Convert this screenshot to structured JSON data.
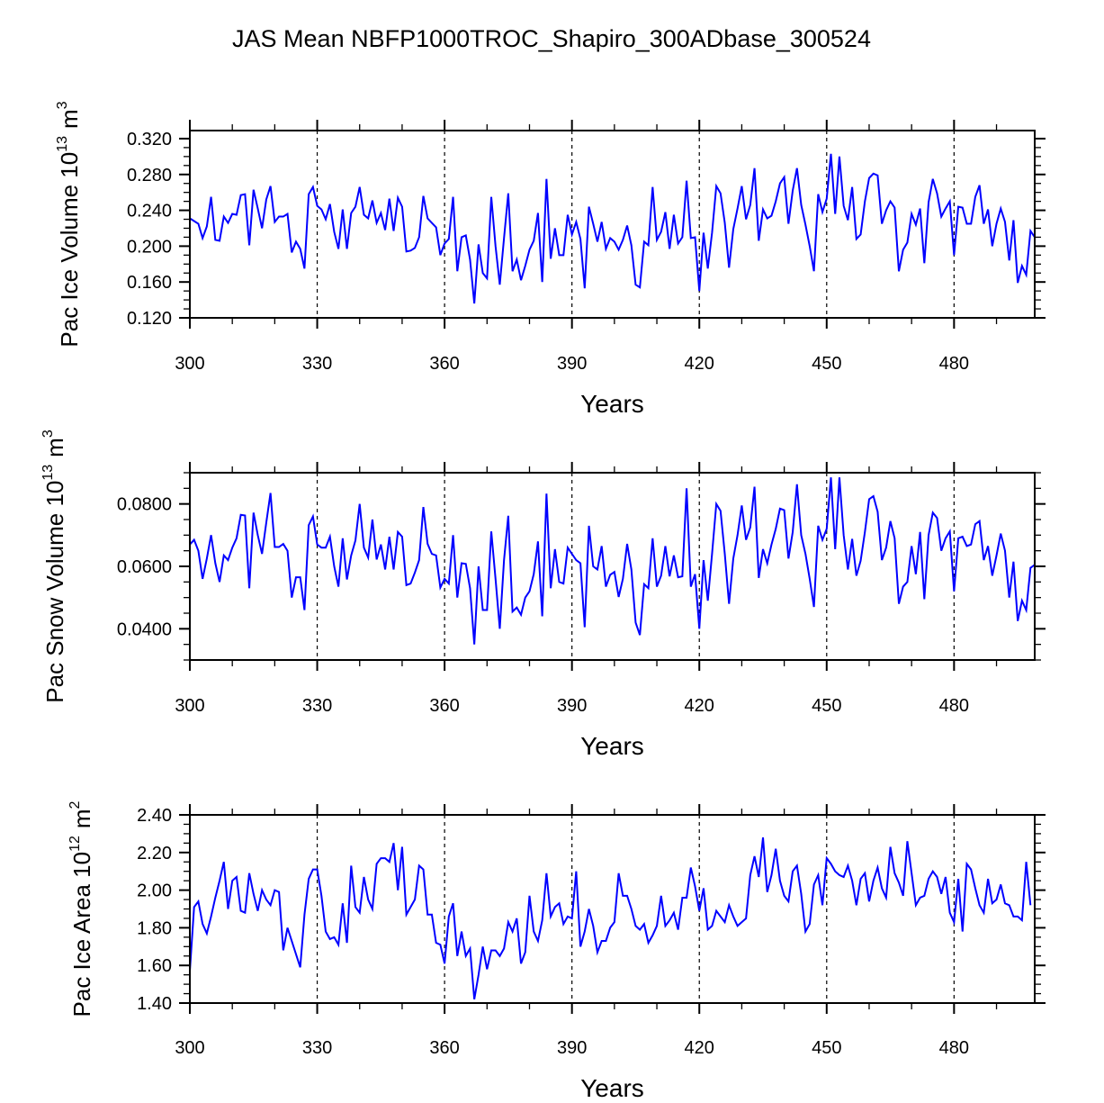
{
  "chart_data": [
    {
      "type": "line",
      "title": "JAS Mean NBFP1000TROC_Shapiro_300ADbase_300524",
      "xlabel": "Years",
      "ylabel": "Pac Ice Volume 10^13 m^3",
      "ylabel_base": "Pac Ice Volume 10",
      "ylabel_exp": "13",
      "ylabel_unit": "m",
      "ylabel_unit_exp": "3",
      "xlim": [
        300,
        499
      ],
      "ylim": [
        0.12,
        0.329
      ],
      "xticks": [
        300,
        330,
        360,
        390,
        420,
        450,
        480
      ],
      "xtick_labels": [
        "300",
        "330",
        "360",
        "390",
        "420",
        "450",
        "480"
      ],
      "yticks": [
        0.12,
        0.16,
        0.2,
        0.24,
        0.28,
        0.32
      ],
      "ytick_labels": [
        "0.120",
        "0.160",
        "0.200",
        "0.240",
        "0.280",
        "0.320"
      ],
      "reference_lines_x": [
        330,
        360,
        390,
        420,
        450,
        480
      ],
      "grid": false,
      "color": "#0000ff",
      "x_start": 300,
      "series": [
        {
          "name": "Pac Ice Volume",
          "values": [
            0.231,
            0.228,
            0.225,
            0.209,
            0.222,
            0.255,
            0.207,
            0.206,
            0.233,
            0.226,
            0.236,
            0.235,
            0.257,
            0.258,
            0.201,
            0.263,
            0.242,
            0.22,
            0.252,
            0.267,
            0.227,
            0.233,
            0.233,
            0.236,
            0.193,
            0.205,
            0.197,
            0.175,
            0.258,
            0.266,
            0.245,
            0.241,
            0.23,
            0.247,
            0.216,
            0.197,
            0.241,
            0.197,
            0.237,
            0.244,
            0.266,
            0.235,
            0.231,
            0.251,
            0.226,
            0.237,
            0.218,
            0.253,
            0.217,
            0.254,
            0.244,
            0.194,
            0.195,
            0.198,
            0.21,
            0.256,
            0.231,
            0.226,
            0.221,
            0.19,
            0.203,
            0.208,
            0.255,
            0.172,
            0.21,
            0.212,
            0.185,
            0.136,
            0.202,
            0.17,
            0.164,
            0.255,
            0.2,
            0.157,
            0.209,
            0.259,
            0.172,
            0.185,
            0.162,
            0.178,
            0.196,
            0.206,
            0.237,
            0.16,
            0.275,
            0.186,
            0.22,
            0.19,
            0.19,
            0.235,
            0.213,
            0.227,
            0.208,
            0.153,
            0.244,
            0.225,
            0.205,
            0.227,
            0.197,
            0.209,
            0.205,
            0.196,
            0.207,
            0.223,
            0.201,
            0.157,
            0.154,
            0.205,
            0.201,
            0.266,
            0.207,
            0.216,
            0.238,
            0.197,
            0.235,
            0.203,
            0.21,
            0.273,
            0.209,
            0.21,
            0.15,
            0.215,
            0.175,
            0.215,
            0.267,
            0.259,
            0.226,
            0.176,
            0.219,
            0.242,
            0.267,
            0.23,
            0.246,
            0.287,
            0.206,
            0.241,
            0.231,
            0.234,
            0.25,
            0.27,
            0.277,
            0.225,
            0.262,
            0.287,
            0.246,
            0.224,
            0.2,
            0.172,
            0.258,
            0.238,
            0.253,
            0.303,
            0.236,
            0.3,
            0.245,
            0.229,
            0.266,
            0.208,
            0.213,
            0.25,
            0.276,
            0.281,
            0.279,
            0.225,
            0.24,
            0.25,
            0.243,
            0.172,
            0.196,
            0.204,
            0.236,
            0.224,
            0.242,
            0.181,
            0.249,
            0.275,
            0.259,
            0.233,
            0.242,
            0.25,
            0.19,
            0.244,
            0.243,
            0.225,
            0.225,
            0.255,
            0.268,
            0.225,
            0.241,
            0.2,
            0.225,
            0.242,
            0.227,
            0.184,
            0.229,
            0.159,
            0.178,
            0.168,
            0.217,
            0.21
          ]
        }
      ]
    },
    {
      "type": "line",
      "xlabel": "Years",
      "ylabel": "Pac Snow Volume 10^13 m^3",
      "ylabel_base": "Pac Snow Volume 10",
      "ylabel_exp": "13",
      "ylabel_unit": "m",
      "ylabel_unit_exp": "3",
      "xlim": [
        300,
        499
      ],
      "ylim": [
        0.03,
        0.09
      ],
      "xticks": [
        300,
        330,
        360,
        390,
        420,
        450,
        480
      ],
      "xtick_labels": [
        "300",
        "330",
        "360",
        "390",
        "420",
        "450",
        "480"
      ],
      "yticks": [
        0.04,
        0.06,
        0.08
      ],
      "ytick_labels": [
        "0.0400",
        "0.0600",
        "0.0800"
      ],
      "reference_lines_x": [
        330,
        360,
        390,
        420,
        450,
        480
      ],
      "grid": false,
      "color": "#0000ff",
      "x_start": 300,
      "series": [
        {
          "name": "Pac Snow Volume",
          "values": [
            0.067,
            0.0685,
            0.065,
            0.056,
            0.0625,
            0.07,
            0.061,
            0.055,
            0.0635,
            0.062,
            0.066,
            0.069,
            0.0765,
            0.0763,
            0.053,
            0.0772,
            0.07,
            0.064,
            0.074,
            0.0835,
            0.0662,
            0.0662,
            0.0672,
            0.065,
            0.05,
            0.0565,
            0.0565,
            0.046,
            0.0732,
            0.076,
            0.067,
            0.066,
            0.066,
            0.0695,
            0.06,
            0.0535,
            0.069,
            0.0558,
            0.0635,
            0.0683,
            0.08,
            0.066,
            0.0628,
            0.075,
            0.0622,
            0.067,
            0.059,
            0.0695,
            0.059,
            0.071,
            0.0695,
            0.054,
            0.0545,
            0.058,
            0.062,
            0.079,
            0.0672,
            0.064,
            0.0635,
            0.0532,
            0.056,
            0.0545,
            0.07,
            0.05,
            0.061,
            0.0608,
            0.053,
            0.035,
            0.06,
            0.046,
            0.046,
            0.0712,
            0.056,
            0.04,
            0.062,
            0.0762,
            0.0455,
            0.0468,
            0.0445,
            0.05,
            0.052,
            0.0575,
            0.068,
            0.044,
            0.0833,
            0.053,
            0.0655,
            0.055,
            0.0545,
            0.066,
            0.064,
            0.062,
            0.061,
            0.0405,
            0.073,
            0.06,
            0.059,
            0.0665,
            0.0535,
            0.0573,
            0.0582,
            0.0502,
            0.056,
            0.0672,
            0.059,
            0.042,
            0.038,
            0.0543,
            0.053,
            0.069,
            0.0535,
            0.057,
            0.0665,
            0.0568,
            0.0635,
            0.0565,
            0.0568,
            0.085,
            0.0535,
            0.0575,
            0.04,
            0.062,
            0.049,
            0.064,
            0.08,
            0.0778,
            0.064,
            0.048,
            0.0625,
            0.07,
            0.0795,
            0.0685,
            0.0725,
            0.0855,
            0.0563,
            0.0655,
            0.061,
            0.067,
            0.072,
            0.0785,
            0.078,
            0.0625,
            0.071,
            0.0863,
            0.07,
            0.064,
            0.056,
            0.047,
            0.073,
            0.0685,
            0.072,
            0.0885,
            0.0655,
            0.0885,
            0.07,
            0.059,
            0.0688,
            0.057,
            0.0618,
            0.071,
            0.0815,
            0.0825,
            0.0775,
            0.062,
            0.066,
            0.0745,
            0.069,
            0.048,
            0.0535,
            0.055,
            0.0665,
            0.0575,
            0.071,
            0.0495,
            0.07,
            0.0772,
            0.0755,
            0.065,
            0.069,
            0.0712,
            0.052,
            0.069,
            0.0695,
            0.0665,
            0.067,
            0.0735,
            0.0745,
            0.062,
            0.0665,
            0.057,
            0.0635,
            0.0705,
            0.065,
            0.05,
            0.0615,
            0.0425,
            0.049,
            0.046,
            0.0595,
            0.0605
          ]
        }
      ]
    },
    {
      "type": "line",
      "xlabel": "Years",
      "ylabel": "Pac Ice Area 10^12 m^2",
      "ylabel_base": "Pac Ice Area 10",
      "ylabel_exp": "12",
      "ylabel_unit": "m",
      "ylabel_unit_exp": "2",
      "xlim": [
        300,
        499
      ],
      "ylim": [
        1.4,
        2.4
      ],
      "xticks": [
        300,
        330,
        360,
        390,
        420,
        450,
        480
      ],
      "xtick_labels": [
        "300",
        "330",
        "360",
        "390",
        "420",
        "450",
        "480"
      ],
      "yticks": [
        1.4,
        1.6,
        1.8,
        2.0,
        2.2,
        2.4
      ],
      "ytick_labels": [
        "1.40",
        "1.60",
        "1.80",
        "2.00",
        "2.20",
        "2.40"
      ],
      "reference_lines_x": [
        330,
        360,
        390,
        420,
        450,
        480
      ],
      "grid": false,
      "color": "#0000ff",
      "x_start": 300,
      "series": [
        {
          "name": "Pac Ice Area",
          "values": [
            1.57,
            1.91,
            1.94,
            1.82,
            1.77,
            1.86,
            1.96,
            2.05,
            2.15,
            1.9,
            2.05,
            2.07,
            1.89,
            1.88,
            2.09,
            1.98,
            1.89,
            2.0,
            1.95,
            1.92,
            2.0,
            1.99,
            1.68,
            1.8,
            1.73,
            1.66,
            1.59,
            1.87,
            2.06,
            2.11,
            2.11,
            1.97,
            1.78,
            1.74,
            1.75,
            1.71,
            1.93,
            1.72,
            2.13,
            1.91,
            1.88,
            2.07,
            1.95,
            1.9,
            2.14,
            2.17,
            2.17,
            2.15,
            2.25,
            2.0,
            2.23,
            1.87,
            1.91,
            1.95,
            2.13,
            2.11,
            1.87,
            1.87,
            1.72,
            1.71,
            1.61,
            1.86,
            1.93,
            1.65,
            1.78,
            1.65,
            1.69,
            1.42,
            1.55,
            1.7,
            1.58,
            1.68,
            1.68,
            1.65,
            1.69,
            1.83,
            1.78,
            1.85,
            1.61,
            1.67,
            1.97,
            1.78,
            1.73,
            1.84,
            2.09,
            1.86,
            1.91,
            1.93,
            1.82,
            1.86,
            1.85,
            2.1,
            1.7,
            1.78,
            1.9,
            1.81,
            1.67,
            1.73,
            1.73,
            1.8,
            1.83,
            2.09,
            1.97,
            1.97,
            1.9,
            1.81,
            1.79,
            1.82,
            1.72,
            1.76,
            1.81,
            1.97,
            1.81,
            1.84,
            1.88,
            1.79,
            1.96,
            1.96,
            2.12,
            2.02,
            1.89,
            2.01,
            1.79,
            1.81,
            1.89,
            1.86,
            1.83,
            1.92,
            1.86,
            1.81,
            1.83,
            1.85,
            2.08,
            2.18,
            2.07,
            2.28,
            1.99,
            2.08,
            2.22,
            2.05,
            1.97,
            1.94,
            2.1,
            2.13,
            1.98,
            1.78,
            1.82,
            2.03,
            2.08,
            1.92,
            2.17,
            2.14,
            2.1,
            2.08,
            2.07,
            2.13,
            2.05,
            1.92,
            2.06,
            2.09,
            1.94,
            2.05,
            2.12,
            2.01,
            1.96,
            2.23,
            2.09,
            2.04,
            1.97,
            2.26,
            2.09,
            1.92,
            1.96,
            1.97,
            2.06,
            2.1,
            2.07,
            1.98,
            2.07,
            1.88,
            1.83,
            2.06,
            1.78,
            2.14,
            2.11,
            2.01,
            1.92,
            1.88,
            2.06,
            1.93,
            1.95,
            2.03,
            1.93,
            1.92,
            1.86,
            1.86,
            1.84,
            2.15,
            1.92
          ]
        }
      ]
    }
  ]
}
